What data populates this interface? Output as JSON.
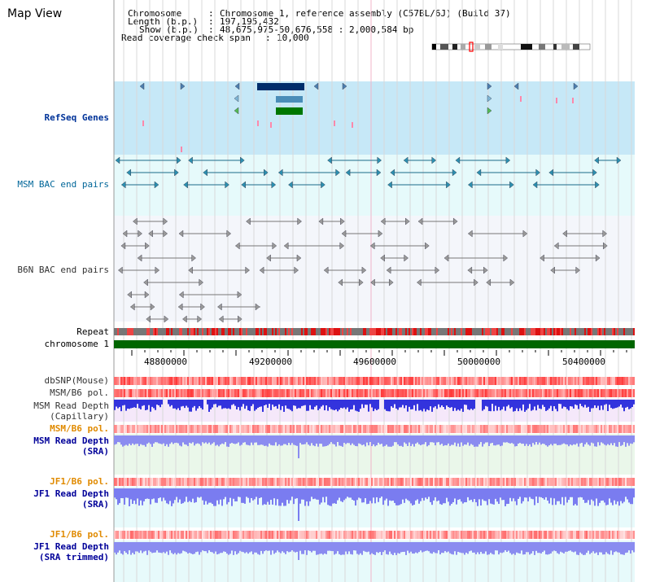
{
  "app": {
    "title": "Map View"
  },
  "info": {
    "chromosome_label": "Chromosome",
    "chromosome_value": "Chromosome 1, reference assembly (C57BL/6J) (Build 37)",
    "length_label": "Length (b.p.)",
    "length_value": "197,195,432",
    "show_label": "Show (b.p.)",
    "show_value": "48,675,975-50,676,558 : 2,000,584 bp",
    "coverage_label": "Read coverage check span",
    "coverage_value": "10,000"
  },
  "tracks": {
    "refseq": "RefSeq Genes",
    "msm_bac": "MSM BAC end pairs",
    "b6n_bac": "B6N BAC end pairs",
    "repeat": "Repeat",
    "chromosome": "chromosome 1",
    "dbsnp": "dbSNP(Mouse)",
    "msm_b6_pol_1": "MSM/B6 pol.",
    "msm_read_depth_cap_1": "MSM Read Depth",
    "msm_read_depth_cap_2": "(Capillary)",
    "msm_b6_pol_2": "MSM/B6 pol.",
    "msm_read_depth_sra_1": "MSM Read Depth",
    "msm_read_depth_sra_2": "(SRA)",
    "jf1_b6_pol_1": "JF1/B6 pol.",
    "jf1_read_depth_sra_1": "JF1 Read Depth",
    "jf1_read_depth_sra_2": "(SRA)",
    "jf1_b6_pol_2": "JF1/B6 pol.",
    "jf1_read_depth_trim_1": "JF1 Read Depth",
    "jf1_read_depth_trim_2": "(SRA trimmed)"
  },
  "axis": {
    "ticks": [
      "48800000",
      "49200000",
      "49600000",
      "50000000",
      "50400000"
    ]
  },
  "colors": {
    "refseq_bg": "#c6e8f7",
    "msm_bac_bg": "#e6fafb",
    "chromosome_green": "#006600",
    "gene_navy": "#002d6b",
    "gene_blue": "#4a8db8",
    "gene_green": "#007700",
    "label_blue": "#003399",
    "label_orange": "#e08a00"
  }
}
